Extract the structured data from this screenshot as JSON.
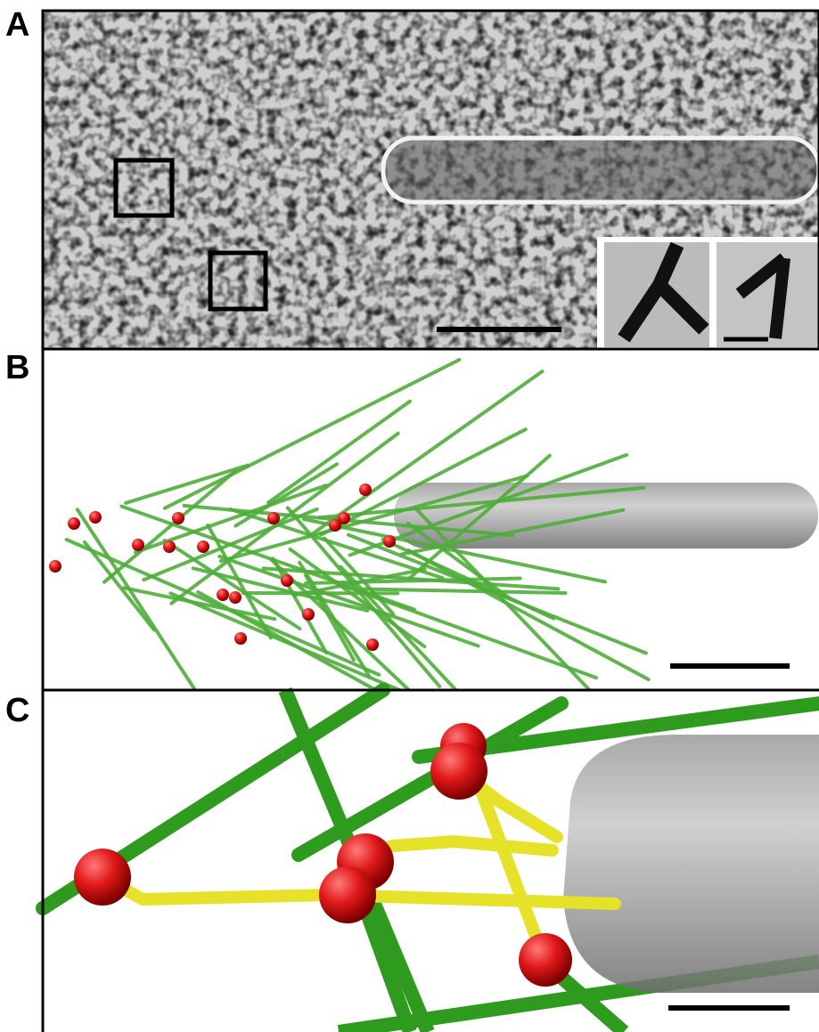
{
  "panels": [
    {
      "label": "A"
    },
    {
      "label": "B"
    },
    {
      "label": "C"
    }
  ]
}
